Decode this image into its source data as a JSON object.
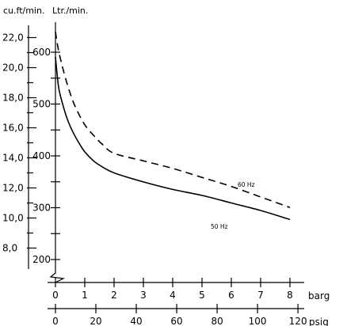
{
  "chart_data": {
    "type": "line",
    "left_axes": {
      "cuft": {
        "label": "cu.ft/min.",
        "ticks": [
          8.0,
          10.0,
          12.0,
          14.0,
          16.0,
          18.0,
          20.0,
          22.0
        ],
        "tick_labels": [
          "8,0",
          "10,0",
          "12,0",
          "14,0",
          "16,0",
          "18,0",
          "20,0",
          "22,0"
        ]
      },
      "ltr": {
        "label": "Ltr./min.",
        "ticks": [
          200,
          300,
          400,
          500,
          600
        ],
        "tick_labels": [
          "200",
          "300",
          "400",
          "500",
          "600"
        ]
      }
    },
    "bottom_axes": {
      "barg": {
        "label": "barg",
        "ticks": [
          0,
          1,
          2,
          3,
          4,
          5,
          6,
          7,
          8
        ],
        "tick_labels": [
          "0",
          "1",
          "2",
          "3",
          "4",
          "5",
          "6",
          "7",
          "8"
        ]
      },
      "psig": {
        "label": "psig",
        "ticks": [
          0,
          20,
          40,
          60,
          80,
          100,
          120
        ],
        "tick_labels": [
          "0",
          "20",
          "40",
          "60",
          "80",
          "100",
          "120"
        ]
      }
    },
    "series": [
      {
        "name": "60 Hz",
        "style": "dashed",
        "x_barg": [
          0,
          0.1,
          0.3,
          0.5,
          0.7,
          1.0,
          1.3,
          1.6,
          2.0,
          3.0,
          4.0,
          5.0,
          6.0,
          7.0,
          8.0
        ],
        "y_cuft": [
          22.4,
          21.2,
          19.6,
          18.3,
          17.3,
          16.2,
          15.5,
          14.9,
          14.3,
          13.8,
          13.3,
          12.7,
          12.1,
          11.4,
          10.7
        ]
      },
      {
        "name": "50 Hz",
        "style": "solid",
        "x_barg": [
          0,
          0.1,
          0.2,
          0.4,
          0.6,
          0.8,
          1.0,
          1.3,
          1.6,
          2.0,
          3.0,
          4.0,
          5.0,
          6.0,
          7.0,
          8.0
        ],
        "y_cuft": [
          20.7,
          18.8,
          17.9,
          16.6,
          15.7,
          15.0,
          14.4,
          13.8,
          13.4,
          13.0,
          12.4,
          11.9,
          11.5,
          11.0,
          10.5,
          9.9
        ]
      }
    ]
  }
}
